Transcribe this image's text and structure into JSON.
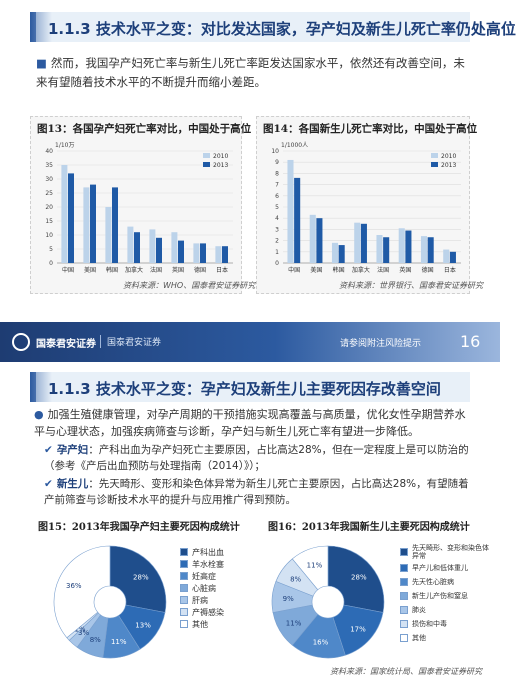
{
  "slide1": {
    "title": "1.1.3 技术水平之变：对比发达国家，孕产妇及新生儿死亡率仍处高位",
    "paragraph": "然而，我国孕产妇死亡率与新生儿死亡率距发达国家水平，依然还有改善空间，未来有望随着技术水平的不断提升而缩小差距。",
    "fig13": {
      "caption": "图13：各国孕产妇死亡率对比，中国处于高位",
      "unit": "1/10万",
      "source": "资料来源：WHO、国泰君安证券研究"
    },
    "fig14": {
      "caption": "图14：各国新生儿死亡率对比，中国处于高位",
      "unit": "1/1000人",
      "source": "资料来源：世界银行、国泰君安证券研究"
    }
  },
  "band": {
    "brand": "国泰君安证券",
    "brand_en": "国泰君安证券",
    "disclaimer": "请参阅附注风险提示",
    "page": "16"
  },
  "slide2": {
    "title": "1.1.3 技术水平之变：孕产妇及新生儿主要死因存改善空间",
    "paragraph": "加强生殖健康管理，对孕产周期的干预措施实现高覆盖与高质量，优化女性孕期营养水平与心理状态，加强疾病筛查与诊断，孕产妇与新生儿死亡率有望进一步降低。",
    "sub1_label": "孕产妇",
    "sub1_text": "：产科出血为孕产妇死亡主要原因，占比高达28%，但在一定程度上是可以防治的（参考《产后出血预防与处理指南（2014）》）；",
    "sub2_label": "新生儿",
    "sub2_text": "：先天畸形、变形和染色体异常为新生儿死亡主要原因，占比高达28%，有望随着产前筛查与诊断技术水平的提升与应用推广得到预防。",
    "fig15_caption": "图15：2013年我国孕产妇主要死因构成统计",
    "fig16_caption": "图16：2013年我国新生儿主要死因构成统计",
    "source": "资料来源：国家统计局、国泰君安证券研究"
  },
  "chart_data": [
    {
      "type": "bar",
      "title": "图13：各国孕产妇死亡率对比，中国处于高位",
      "ylabel": "1/10万",
      "categories": [
        "中国",
        "美国",
        "韩国",
        "加拿大",
        "法国",
        "英国",
        "德国",
        "日本"
      ],
      "series": [
        {
          "name": "2010",
          "values": [
            35,
            27,
            20,
            13,
            12,
            11,
            7,
            6
          ],
          "color": "#bcd3ea"
        },
        {
          "name": "2013",
          "values": [
            32,
            28,
            27,
            11,
            9,
            8,
            7,
            6
          ],
          "color": "#1f5aa6"
        }
      ],
      "ylim": [
        0,
        40
      ],
      "yticks": [
        0,
        5,
        10,
        15,
        20,
        25,
        30,
        35,
        40
      ],
      "legend": "top-right"
    },
    {
      "type": "bar",
      "title": "图14：各国新生儿死亡率对比，中国处于高位",
      "ylabel": "1/1000人",
      "categories": [
        "中国",
        "美国",
        "韩国",
        "加拿大",
        "法国",
        "英国",
        "德国",
        "日本"
      ],
      "series": [
        {
          "name": "2010",
          "values": [
            9.2,
            4.3,
            1.8,
            3.6,
            2.5,
            3.1,
            2.4,
            1.2
          ],
          "color": "#bcd3ea"
        },
        {
          "name": "2013",
          "values": [
            7.6,
            4.0,
            1.6,
            3.5,
            2.3,
            2.9,
            2.3,
            1.0
          ],
          "color": "#1f5aa6"
        }
      ],
      "ylim": [
        0,
        10
      ],
      "yticks": [
        0,
        1,
        2,
        3,
        4,
        5,
        6,
        7,
        8,
        9,
        10
      ],
      "legend": "top-right"
    },
    {
      "type": "pie",
      "title": "图15：2013年我国孕产妇主要死因构成统计",
      "labels": [
        "产科出血",
        "羊水栓塞",
        "妊高症",
        "心脏病",
        "肝病",
        "产褥感染",
        "其他"
      ],
      "values": [
        28,
        13,
        11,
        8,
        3,
        1,
        36
      ],
      "value_labels": [
        "28%",
        "13%",
        "11%",
        "8%",
        "3%",
        "1%",
        "36%"
      ],
      "colors": [
        "#1f4e8c",
        "#2d6bb5",
        "#4f88c9",
        "#7fa9d9",
        "#a9c6e8",
        "#d3e2f3",
        "#ffffff"
      ],
      "legend": "right"
    },
    {
      "type": "pie",
      "title": "图16：2013年我国新生儿主要死因构成统计",
      "labels": [
        "先天畸形、变形和染色体异常",
        "早产儿和低体重儿",
        "先天性心脏病",
        "新生儿产伤和窒息",
        "肺炎",
        "损伤和中毒",
        "其他"
      ],
      "values": [
        28,
        17,
        16,
        11,
        9,
        8,
        11
      ],
      "value_labels": [
        "28%",
        "17%",
        "16%",
        "11%",
        "9%",
        "8%",
        "11%"
      ],
      "colors": [
        "#1f4e8c",
        "#2d6bb5",
        "#4f88c9",
        "#7fa9d9",
        "#a9c6e8",
        "#d3e2f3",
        "#ffffff"
      ],
      "legend": "right"
    }
  ]
}
